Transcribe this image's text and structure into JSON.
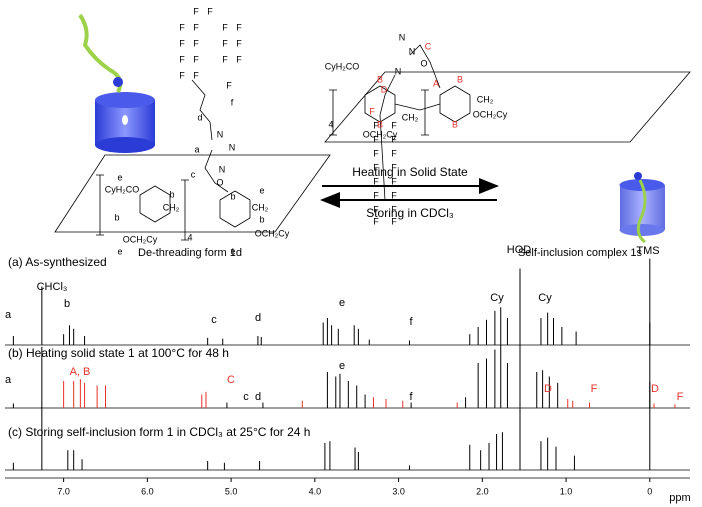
{
  "scheme": {
    "left_caption": "De-threading form 1d",
    "right_caption": "Self-inclusion complex 1s",
    "arrow_forward": "Heating in Solid State",
    "arrow_back": "Storing in CDCl₃",
    "left_labels": [
      "F",
      "F",
      "F",
      "F",
      "F",
      "F",
      "F",
      "F",
      "F",
      "F",
      "F",
      "F",
      "F",
      "F",
      "F",
      "F",
      "F",
      "f",
      "d",
      "a",
      "N",
      "N",
      "N",
      "c",
      "O",
      "e",
      "CyH₂CO",
      "b",
      "b",
      "CH₂",
      "e",
      "CH₂",
      "4",
      "b",
      "b",
      "OCH₂Cy",
      "OCH₂Cy",
      "e",
      "e"
    ],
    "right_labels": [
      "N",
      "N",
      "N",
      {
        "text": "C",
        "color": "#e8312a"
      },
      "O",
      {
        "text": "A",
        "color": "#e8312a"
      },
      {
        "text": "D",
        "color": "#e8312a"
      },
      "CyH₂CO",
      {
        "text": "B",
        "color": "#e8312a"
      },
      {
        "text": "B",
        "color": "#e8312a"
      },
      {
        "text": "B",
        "color": "#e8312a"
      },
      {
        "text": "B",
        "color": "#e8312a"
      },
      "CH₂",
      "CH₂",
      "4",
      "OCH₂Cy",
      "OCH₂Cy",
      {
        "text": "F",
        "color": "#e8312a"
      },
      "F",
      "F",
      "F",
      "F",
      "F",
      "F",
      "F",
      "F",
      "F",
      "F",
      "F",
      "F",
      "F",
      "F",
      "F",
      "F"
    ]
  },
  "spectra": [
    {
      "label": "(a) As-synthesized",
      "color": "#000",
      "peaks": [
        [
          7.6,
          10
        ],
        [
          7.26,
          65
        ],
        [
          7.0,
          12
        ],
        [
          6.93,
          22
        ],
        [
          6.88,
          18
        ],
        [
          6.75,
          10
        ],
        [
          5.28,
          8
        ],
        [
          5.1,
          7
        ],
        [
          4.68,
          10
        ],
        [
          4.64,
          9
        ],
        [
          3.9,
          25
        ],
        [
          3.85,
          30
        ],
        [
          3.8,
          22
        ],
        [
          3.72,
          18
        ],
        [
          3.53,
          22
        ],
        [
          3.48,
          18
        ],
        [
          3.35,
          6
        ],
        [
          2.87,
          5
        ],
        [
          2.15,
          12
        ],
        [
          2.05,
          20
        ],
        [
          1.95,
          28
        ],
        [
          1.85,
          38
        ],
        [
          1.78,
          42
        ],
        [
          1.7,
          30
        ],
        [
          1.55,
          85
        ],
        [
          1.3,
          30
        ],
        [
          1.22,
          36
        ],
        [
          1.15,
          30
        ],
        [
          1.05,
          20
        ],
        [
          0.88,
          15
        ],
        [
          0.0,
          96
        ]
      ],
      "annotations": [
        "CHCl₃",
        "a",
        "b",
        "c",
        "d",
        "e",
        "f",
        "Cy",
        "Cy",
        "HOD",
        "TMS"
      ]
    },
    {
      "label": "(b) Heating solid state 1 at 100°C for 48 h",
      "color": "#000",
      "peaks": [
        [
          7.6,
          5
        ],
        [
          7.26,
          68
        ],
        [
          5.05,
          6
        ],
        [
          4.62,
          6
        ],
        [
          3.85,
          40
        ],
        [
          3.75,
          35
        ],
        [
          3.7,
          38
        ],
        [
          3.6,
          30
        ],
        [
          3.5,
          25
        ],
        [
          3.4,
          15
        ],
        [
          2.85,
          6
        ],
        [
          2.2,
          12
        ],
        [
          2.05,
          50
        ],
        [
          1.95,
          55
        ],
        [
          1.85,
          65
        ],
        [
          1.78,
          70
        ],
        [
          1.7,
          50
        ],
        [
          1.55,
          95
        ],
        [
          1.35,
          40
        ],
        [
          1.28,
          42
        ],
        [
          1.2,
          35
        ],
        [
          1.1,
          28
        ],
        [
          0.0,
          95
        ]
      ],
      "highlight_color": "#e8312a",
      "highlight_peaks": [
        [
          7.0,
          30
        ],
        [
          6.88,
          30
        ],
        [
          6.8,
          32
        ],
        [
          6.75,
          28
        ],
        [
          6.6,
          25
        ],
        [
          6.5,
          25
        ],
        [
          5.35,
          15
        ],
        [
          5.3,
          18
        ],
        [
          4.15,
          8
        ],
        [
          3.3,
          12
        ],
        [
          3.15,
          10
        ],
        [
          2.95,
          8
        ],
        [
          2.3,
          6
        ],
        [
          0.98,
          10
        ],
        [
          0.92,
          8
        ],
        [
          0.72,
          6
        ],
        [
          -0.05,
          5
        ],
        [
          -0.3,
          4
        ]
      ],
      "annotations": [
        "a",
        {
          "text": "A, B",
          "color": "#e8312a"
        },
        {
          "text": "C",
          "color": "#e8312a"
        },
        "c",
        "d",
        "e",
        "f",
        {
          "text": "D",
          "color": "#e8312a"
        },
        {
          "text": "F",
          "color": "#e8312a"
        },
        {
          "text": "D",
          "color": "#e8312a"
        },
        {
          "text": "F",
          "color": "#e8312a"
        }
      ]
    },
    {
      "label": "(c) Storing self-inclusion form 1 in CDCl₃ at 25°C for 24 h",
      "color": "#000",
      "peaks": [
        [
          7.6,
          8
        ],
        [
          7.26,
          70
        ],
        [
          6.95,
          22
        ],
        [
          6.88,
          22
        ],
        [
          6.78,
          12
        ],
        [
          5.28,
          10
        ],
        [
          5.08,
          8
        ],
        [
          4.66,
          10
        ],
        [
          3.88,
          30
        ],
        [
          3.82,
          32
        ],
        [
          3.52,
          25
        ],
        [
          3.48,
          20
        ],
        [
          2.87,
          5
        ],
        [
          2.15,
          28
        ],
        [
          2.02,
          22
        ],
        [
          1.92,
          30
        ],
        [
          1.83,
          40
        ],
        [
          1.76,
          42
        ],
        [
          1.55,
          92
        ],
        [
          1.3,
          32
        ],
        [
          1.22,
          36
        ],
        [
          1.12,
          26
        ],
        [
          0.9,
          16
        ],
        [
          0.0,
          98
        ]
      ],
      "annotations": []
    }
  ],
  "axis": {
    "label": "ppm",
    "xlim": [
      7.7,
      -0.48
    ],
    "xticks": [
      {
        "value": 7,
        "label": "7.0"
      },
      {
        "value": 6,
        "label": "6.0"
      },
      {
        "value": 5,
        "label": "5.0"
      },
      {
        "value": 4,
        "label": "4.0"
      },
      {
        "value": 3,
        "label": "3.0"
      },
      {
        "value": 2,
        "label": "2.0"
      },
      {
        "value": 1,
        "label": "1.0"
      },
      0
    ]
  }
}
